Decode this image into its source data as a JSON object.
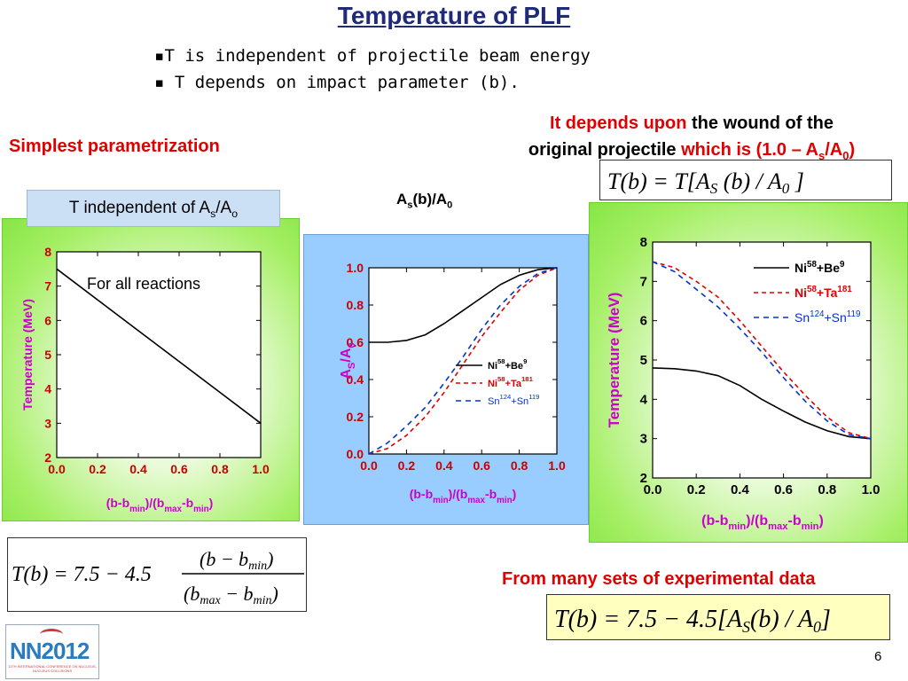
{
  "slide": {
    "title": "Temperature  of PLF",
    "bullets": [
      "▪T is independent of projectile beam energy",
      "▪ T depends on impact parameter (b)."
    ],
    "left_heading": "Simplest parametrization",
    "right_heading_red1": "It depends upon",
    "right_heading_black1": " the wound of the",
    "right_heading_black2": "original projectile",
    "right_heading_red2": " which is  (1.0 – A",
    "right_heading_red3": "/A",
    "right_heading_sub_s": "s",
    "right_heading_sub_0": "0",
    "right_heading_close": ")",
    "eq_top_right": "T(b) = T[A_S(b)/A_0]",
    "label_box": "T independent of  A",
    "label_box_sub1": "s",
    "label_box_mid": "/A",
    "label_box_sub2": "o",
    "middle_label": "A",
    "middle_label_sub1": "s",
    "middle_label_mid": "(b)/A",
    "middle_label_sub2": "0",
    "eq_bottom_left": "T(b) = 7.5 − 4.5 (b − b_min)/(b_max − b_min)",
    "bottom_right_heading": "From many sets of experimental data",
    "eq_bottom_right": "T(b) = 7.5 − 4.5[A_S(b)/A_0]",
    "page_number": "6",
    "logo_text": "NN2012",
    "logo_caption": "11TH INTERNATIONAL CONFERENCE ON NUCLEUS-NUCLEUS COLLISIONS"
  },
  "colors": {
    "title": "#1f2a7a",
    "red": "#e00000",
    "axis_red": "#cc0000",
    "magenta": "#cc00cc",
    "blue": "#0033cc",
    "green": "#86e645",
    "light_blue": "#99ccff"
  },
  "chart_data": [
    {
      "type": "line",
      "ylabel": "Temperature (MeV)",
      "xlabel": "(b-bmin)/(bmax-bmin)",
      "annotation": "For all reactions",
      "xlim": [
        0,
        1
      ],
      "ylim": [
        2,
        8
      ],
      "xticks": [
        "0.0",
        "0.2",
        "0.4",
        "0.6",
        "0.8",
        "1.0"
      ],
      "yticks": [
        "2",
        "3",
        "4",
        "5",
        "6",
        "7",
        "8"
      ],
      "series": [
        {
          "x": [
            0,
            1
          ],
          "y": [
            7.5,
            3.0
          ]
        }
      ]
    },
    {
      "type": "line",
      "ylabel": "AS/A0",
      "xlabel": "(b-bmin)/(bmax-bmin)",
      "xlim": [
        0,
        1
      ],
      "ylim": [
        0,
        1
      ],
      "xticks": [
        "0.0",
        "0.2",
        "0.4",
        "0.6",
        "0.8",
        "1.0"
      ],
      "yticks": [
        "0.0",
        "0.2",
        "0.4",
        "0.6",
        "0.8",
        "1.0"
      ],
      "legend": [
        "Ni58+Be9",
        "Ni58+Ta181",
        "Sn124+Sn119"
      ],
      "series": [
        {
          "name": "Ni58+Be9",
          "x": [
            0,
            0.1,
            0.2,
            0.3,
            0.4,
            0.5,
            0.6,
            0.7,
            0.8,
            0.9,
            1.0
          ],
          "y": [
            0.6,
            0.6,
            0.61,
            0.64,
            0.7,
            0.77,
            0.84,
            0.91,
            0.96,
            0.99,
            1.0
          ]
        },
        {
          "name": "Ni58+Ta181",
          "x": [
            0,
            0.1,
            0.2,
            0.3,
            0.4,
            0.5,
            0.6,
            0.7,
            0.8,
            0.9,
            1.0
          ],
          "y": [
            0,
            0.03,
            0.1,
            0.2,
            0.33,
            0.48,
            0.63,
            0.76,
            0.88,
            0.96,
            1.0
          ]
        },
        {
          "name": "Sn124+Sn119",
          "x": [
            0,
            0.1,
            0.2,
            0.3,
            0.4,
            0.5,
            0.6,
            0.7,
            0.8,
            0.9,
            1.0
          ],
          "y": [
            0,
            0.06,
            0.15,
            0.25,
            0.38,
            0.52,
            0.67,
            0.8,
            0.9,
            0.97,
            1.0
          ]
        }
      ]
    },
    {
      "type": "line",
      "ylabel": "Temperature (MeV)",
      "xlabel": "(b-bmin)/(bmax-bmin)",
      "xlim": [
        0,
        1
      ],
      "ylim": [
        2,
        8
      ],
      "xticks": [
        "0.0",
        "0.2",
        "0.4",
        "0.6",
        "0.8",
        "1.0"
      ],
      "yticks": [
        "2",
        "3",
        "4",
        "5",
        "6",
        "7",
        "8"
      ],
      "legend": [
        "Ni58+Be9",
        "Ni58+Ta181",
        "Sn124+Sn119"
      ],
      "series": [
        {
          "name": "Ni58+Be9",
          "x": [
            0,
            0.1,
            0.2,
            0.3,
            0.4,
            0.5,
            0.6,
            0.7,
            0.8,
            0.9,
            1.0
          ],
          "y": [
            4.8,
            4.78,
            4.72,
            4.6,
            4.35,
            4.0,
            3.7,
            3.42,
            3.2,
            3.05,
            3.0
          ]
        },
        {
          "name": "Ni58+Ta181",
          "x": [
            0,
            0.1,
            0.2,
            0.3,
            0.4,
            0.5,
            0.6,
            0.7,
            0.8,
            0.9,
            1.0
          ],
          "y": [
            7.5,
            7.35,
            7.0,
            6.6,
            6.0,
            5.35,
            4.7,
            4.1,
            3.55,
            3.15,
            3.0
          ]
        },
        {
          "name": "Sn124+Sn119",
          "x": [
            0,
            0.1,
            0.2,
            0.3,
            0.4,
            0.5,
            0.6,
            0.7,
            0.8,
            0.9,
            1.0
          ],
          "y": [
            7.5,
            7.25,
            6.8,
            6.35,
            5.8,
            5.2,
            4.55,
            3.95,
            3.45,
            3.1,
            3.0
          ]
        }
      ]
    }
  ]
}
